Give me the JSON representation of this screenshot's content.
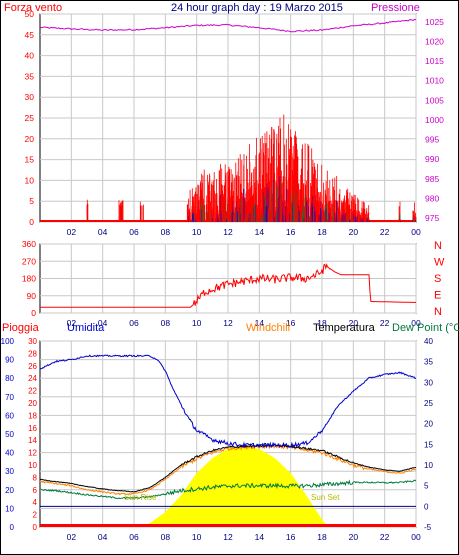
{
  "title": "24 hour graph day : 19 Marzo 2015",
  "colors": {
    "wind": "#ff0000",
    "pressure": "#cc00cc",
    "humidity": "#0000cc",
    "temperature": "#000000",
    "dewpoint": "#007a3d",
    "windchill": "#ff8000",
    "rain": "#ff0000",
    "sun": "#ffff00",
    "navy": "#000080",
    "grid": "#c8c8c8"
  },
  "chart_data": [
    {
      "type": "bar",
      "name": "wind-pressure",
      "left_label": "Forza vento",
      "right_label": "Pressione",
      "left_ticks": [
        "0",
        "5",
        "10",
        "15",
        "20",
        "25",
        "30",
        "35",
        "40",
        "45",
        "50"
      ],
      "right_ticks": [
        "975",
        "980",
        "985",
        "990",
        "995",
        "1000",
        "1005",
        "1010",
        "1015",
        "1020",
        "1025"
      ],
      "x_ticks": [
        "02",
        "04",
        "06",
        "08",
        "10",
        "12",
        "14",
        "16",
        "18",
        "20",
        "22",
        "00"
      ],
      "ylim_left": [
        0,
        50
      ],
      "ylim_right": [
        974,
        1027
      ],
      "xlim": [
        0,
        24
      ],
      "pressure": {
        "x": [
          0,
          2,
          4,
          6,
          8,
          10,
          12,
          14,
          16,
          18,
          20,
          22,
          24
        ],
        "values": [
          1023.6,
          1023.2,
          1022.9,
          1023.0,
          1023.5,
          1024.1,
          1024.2,
          1023.5,
          1022.6,
          1022.9,
          1024.0,
          1024.7,
          1025.6
        ]
      },
      "wind_windows": [
        [
          2.9,
          3.1
        ],
        [
          5.0,
          5.3
        ],
        [
          6.4,
          6.6
        ],
        [
          9.4,
          21.0
        ],
        [
          22.9,
          23.0
        ],
        [
          23.8,
          24.0
        ]
      ],
      "wind_envelope": {
        "x": [
          9.5,
          10.5,
          12,
          13,
          14,
          15,
          15.6,
          16.5,
          17.5,
          18.5,
          19.5,
          20.5
        ],
        "values": [
          8,
          13,
          15,
          18,
          21,
          24,
          26,
          22,
          17,
          13,
          9,
          5
        ]
      }
    },
    {
      "type": "line",
      "name": "wind-direction",
      "right_labels": [
        "N",
        "W",
        "S",
        "E",
        "N"
      ],
      "left_ticks": [
        "0",
        "90",
        "180",
        "270",
        "360"
      ],
      "x_ticks": [
        "02",
        "04",
        "06",
        "08",
        "10",
        "12",
        "14",
        "16",
        "18",
        "20",
        "22",
        "00"
      ],
      "ylim": [
        0,
        360
      ],
      "xlim": [
        0,
        24
      ],
      "direction": {
        "x": [
          0,
          9.6,
          10.0,
          10.5,
          11.0,
          12.0,
          13.0,
          14.0,
          15.0,
          16.0,
          17.0,
          17.8,
          18.3,
          18.8,
          19.2,
          21.0,
          21.1,
          24.0
        ],
        "values": [
          30,
          30,
          60,
          110,
          125,
          150,
          165,
          180,
          175,
          185,
          180,
          205,
          245,
          215,
          200,
          200,
          60,
          55
        ]
      }
    },
    {
      "type": "line",
      "name": "rain-humidity-temperature",
      "labels": {
        "rain": "Pioggia",
        "humidity": "Umidita",
        "windchill": "Windchill",
        "temperature": "Temperatura",
        "dewpoint": "Dew Point (°C",
        "sunrise": "Sun Rise",
        "sunset": "Sun Set"
      },
      "humidity_ticks": [
        "0",
        "10",
        "20",
        "30",
        "40",
        "50",
        "60",
        "70",
        "80",
        "90",
        "100"
      ],
      "rain_ticks": [
        "0",
        "2",
        "4",
        "6",
        "8",
        "10",
        "12",
        "14",
        "16",
        "18",
        "20",
        "22",
        "24",
        "26",
        "28",
        "30"
      ],
      "temp_ticks": [
        "-5",
        "0",
        "5",
        "10",
        "15",
        "20",
        "25",
        "30",
        "35",
        "40"
      ],
      "x_ticks": [
        "02",
        "04",
        "06",
        "08",
        "10",
        "12",
        "14",
        "16",
        "18",
        "20",
        "22",
        "00"
      ],
      "ylim_humidity": [
        0,
        100
      ],
      "ylim_temperature": [
        -5,
        40
      ],
      "xlim": [
        0,
        24
      ],
      "humidity": {
        "x": [
          0,
          1,
          2,
          3,
          4,
          5,
          6,
          7,
          7.5,
          8,
          8.5,
          9,
          9.5,
          10,
          11,
          12,
          13,
          14,
          15,
          16,
          17,
          17.5,
          18,
          18.5,
          19,
          20,
          21,
          22,
          23,
          24
        ],
        "values": [
          85,
          89,
          90,
          92,
          92,
          92,
          92,
          92,
          90,
          84,
          74,
          66,
          58,
          52,
          47,
          45,
          44,
          44,
          44,
          44,
          45,
          48,
          52,
          58,
          65,
          73,
          80,
          82,
          83,
          80
        ]
      },
      "temperature": {
        "x": [
          0,
          1,
          2,
          3,
          4,
          5,
          6,
          7,
          8,
          9,
          10,
          11,
          12,
          13,
          14,
          15,
          16,
          17,
          18,
          19,
          20,
          21,
          22,
          23,
          24
        ],
        "values": [
          6.5,
          6.0,
          5.5,
          4.8,
          4.2,
          3.8,
          3.5,
          4.5,
          7.0,
          10.0,
          12.0,
          13.5,
          14.3,
          14.5,
          14.6,
          14.8,
          14.5,
          14.0,
          13.5,
          12.0,
          10.5,
          9.5,
          8.8,
          8.5,
          9.5
        ]
      },
      "windchill": {
        "x": [
          0,
          1,
          2,
          3,
          4,
          5,
          6,
          7,
          8,
          9,
          10,
          11,
          12,
          13,
          14,
          15,
          16,
          17,
          18,
          19,
          20,
          21,
          22,
          23,
          24
        ],
        "values": [
          6.0,
          5.5,
          5.0,
          4.0,
          3.5,
          3.0,
          3.0,
          4.0,
          6.5,
          9.5,
          11.5,
          13.0,
          14.0,
          14.3,
          14.5,
          14.6,
          14.2,
          13.6,
          13.0,
          11.5,
          10.0,
          9.0,
          8.4,
          8.0,
          9.0
        ]
      },
      "dewpoint": {
        "x": [
          0,
          1,
          2,
          3,
          4,
          5,
          6,
          7,
          8,
          9,
          10,
          11,
          12,
          13,
          14,
          15,
          16,
          17,
          18,
          19,
          20,
          21,
          22,
          23,
          24
        ],
        "values": [
          4.0,
          3.8,
          3.3,
          2.8,
          2.4,
          2.0,
          2.0,
          2.3,
          3.0,
          3.8,
          4.2,
          4.6,
          4.9,
          5.0,
          5.0,
          5.0,
          4.9,
          5.0,
          5.2,
          5.5,
          5.8,
          5.8,
          5.7,
          5.8,
          6.2
        ]
      },
      "sun": {
        "x": [
          6.3,
          7,
          8,
          9,
          10,
          11,
          12,
          13,
          14,
          15,
          16,
          17,
          18,
          18.4
        ],
        "values": [
          0,
          2,
          8,
          17,
          29,
          37,
          42,
          43,
          42,
          37,
          29,
          17,
          4,
          0
        ]
      },
      "reference_line": 0
    }
  ]
}
